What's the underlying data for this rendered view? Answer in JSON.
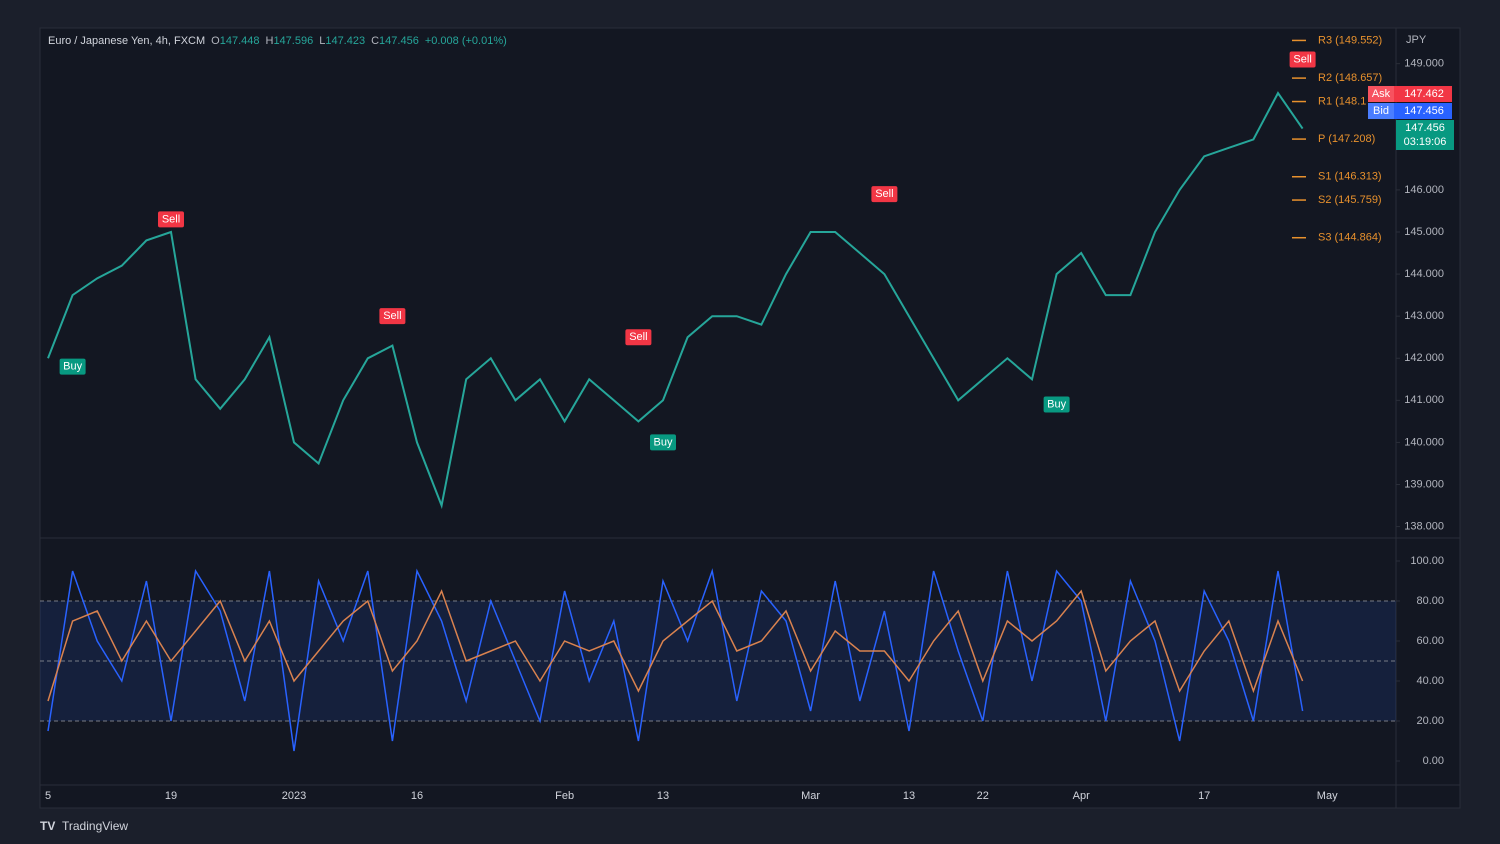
{
  "header": {
    "symbol": "Euro / Japanese Yen, 4h, FXCM",
    "ohlc": [
      {
        "key": "O",
        "value": "147.448"
      },
      {
        "key": "H",
        "value": "147.596"
      },
      {
        "key": "L",
        "value": "147.423"
      },
      {
        "key": "C",
        "value": "147.456"
      }
    ],
    "change": "+0.008 (+0.01%)"
  },
  "currency": "JPY",
  "quote": {
    "ask_label": "Ask",
    "ask": "147.462",
    "bid_label": "Bid",
    "bid": "147.456",
    "last": "147.456",
    "countdown": "03:19:06"
  },
  "chart_data": [
    {
      "type": "line",
      "categories": [
        "5",
        null,
        null,
        null,
        null,
        "19",
        null,
        null,
        null,
        null,
        "2023",
        null,
        null,
        null,
        null,
        "16",
        null,
        null,
        null,
        null,
        null,
        "Feb",
        null,
        null,
        null,
        "13",
        null,
        null,
        null,
        null,
        null,
        "Mar",
        null,
        null,
        null,
        "13",
        null,
        null,
        "22",
        null,
        null,
        null,
        "Apr",
        null,
        null,
        null,
        null,
        "17",
        null,
        null,
        null,
        null,
        "May"
      ],
      "values": [
        142.0,
        143.5,
        143.9,
        144.2,
        144.8,
        145.0,
        141.5,
        140.8,
        141.5,
        142.5,
        140.0,
        139.5,
        141.0,
        142.0,
        142.3,
        140.0,
        138.5,
        141.5,
        142.0,
        141.0,
        141.5,
        140.5,
        141.5,
        141.0,
        140.5,
        141.0,
        142.5,
        143.0,
        143.0,
        142.8,
        144.0,
        145.0,
        145.0,
        144.5,
        144.0,
        143.0,
        142.0,
        141.0,
        141.5,
        142.0,
        141.5,
        144.0,
        144.5,
        143.5,
        143.5,
        145.0,
        146.0,
        146.8,
        147.0,
        147.2,
        148.3,
        147.456,
        null
      ],
      "color": "#26a69a",
      "ylim": [
        137.8,
        149.8
      ],
      "yticks": [
        {
          "value": 138,
          "label": "138.000"
        },
        {
          "value": 139,
          "label": "139.000"
        },
        {
          "value": 140,
          "label": "140.000"
        },
        {
          "value": 141,
          "label": "141.000"
        },
        {
          "value": 142,
          "label": "142.000"
        },
        {
          "value": 143,
          "label": "143.000"
        },
        {
          "value": 144,
          "label": "144.000"
        },
        {
          "value": 145,
          "label": "145.000"
        },
        {
          "value": 146,
          "label": "146.000"
        },
        {
          "value": 149,
          "label": "149.000"
        }
      ],
      "pivots": [
        {
          "label": "R3 (149.552)",
          "value": 149.552
        },
        {
          "label": "R2 (148.657)",
          "value": 148.657
        },
        {
          "label": "R1 (148.1",
          "value": 148.1
        },
        {
          "label": "P (147.208)",
          "value": 147.208
        },
        {
          "label": "S1 (146.313)",
          "value": 146.313
        },
        {
          "label": "S2 (145.759)",
          "value": 145.759
        },
        {
          "label": "S3 (144.864)",
          "value": 144.864
        }
      ],
      "pivot_color": "#e8912d",
      "signals": [
        {
          "label": "Sell",
          "index": 5,
          "value": 145.3
        },
        {
          "label": "Sell",
          "index": 14,
          "value": 143.0
        },
        {
          "label": "Sell",
          "index": 24,
          "value": 142.5
        },
        {
          "label": "Sell",
          "index": 34,
          "value": 145.9
        },
        {
          "label": "Sell",
          "index": 51,
          "value": 149.1
        },
        {
          "label": "Buy",
          "index": 1,
          "value": 141.8
        },
        {
          "label": "Buy",
          "index": 25,
          "value": 140.0
        },
        {
          "label": "Buy",
          "index": 41,
          "value": 140.9
        }
      ]
    },
    {
      "type": "line",
      "series": [
        {
          "color": "#2962ff",
          "values": [
            15,
            95,
            60,
            40,
            90,
            20,
            95,
            75,
            30,
            95,
            5,
            90,
            60,
            95,
            10,
            95,
            70,
            30,
            80,
            50,
            20,
            85,
            40,
            70,
            10,
            90,
            60,
            95,
            30,
            85,
            70,
            25,
            90,
            30,
            75,
            15,
            95,
            55,
            20,
            95,
            40,
            95,
            80,
            20,
            90,
            60,
            10,
            85,
            60,
            20,
            95,
            25,
            null
          ]
        },
        {
          "color": "#d9824f",
          "values": [
            30,
            70,
            75,
            50,
            70,
            50,
            65,
            80,
            50,
            70,
            40,
            55,
            70,
            80,
            45,
            60,
            85,
            50,
            55,
            60,
            40,
            60,
            55,
            60,
            35,
            60,
            70,
            80,
            55,
            60,
            75,
            45,
            65,
            55,
            55,
            40,
            60,
            75,
            40,
            70,
            60,
            70,
            85,
            45,
            60,
            70,
            35,
            55,
            70,
            35,
            70,
            40,
            null
          ]
        }
      ],
      "ylim": [
        -12,
        108
      ],
      "yticks": [
        {
          "value": 0,
          "label": "0.00"
        },
        {
          "value": 20,
          "label": "20.00"
        },
        {
          "value": 40,
          "label": "40.00"
        },
        {
          "value": 60,
          "label": "60.00"
        },
        {
          "value": 80,
          "label": "80.00"
        },
        {
          "value": 100,
          "label": "100.00"
        }
      ],
      "band": [
        20,
        80
      ],
      "levels": [
        20,
        50,
        80
      ]
    }
  ],
  "footer": {
    "brand": "TradingView"
  }
}
